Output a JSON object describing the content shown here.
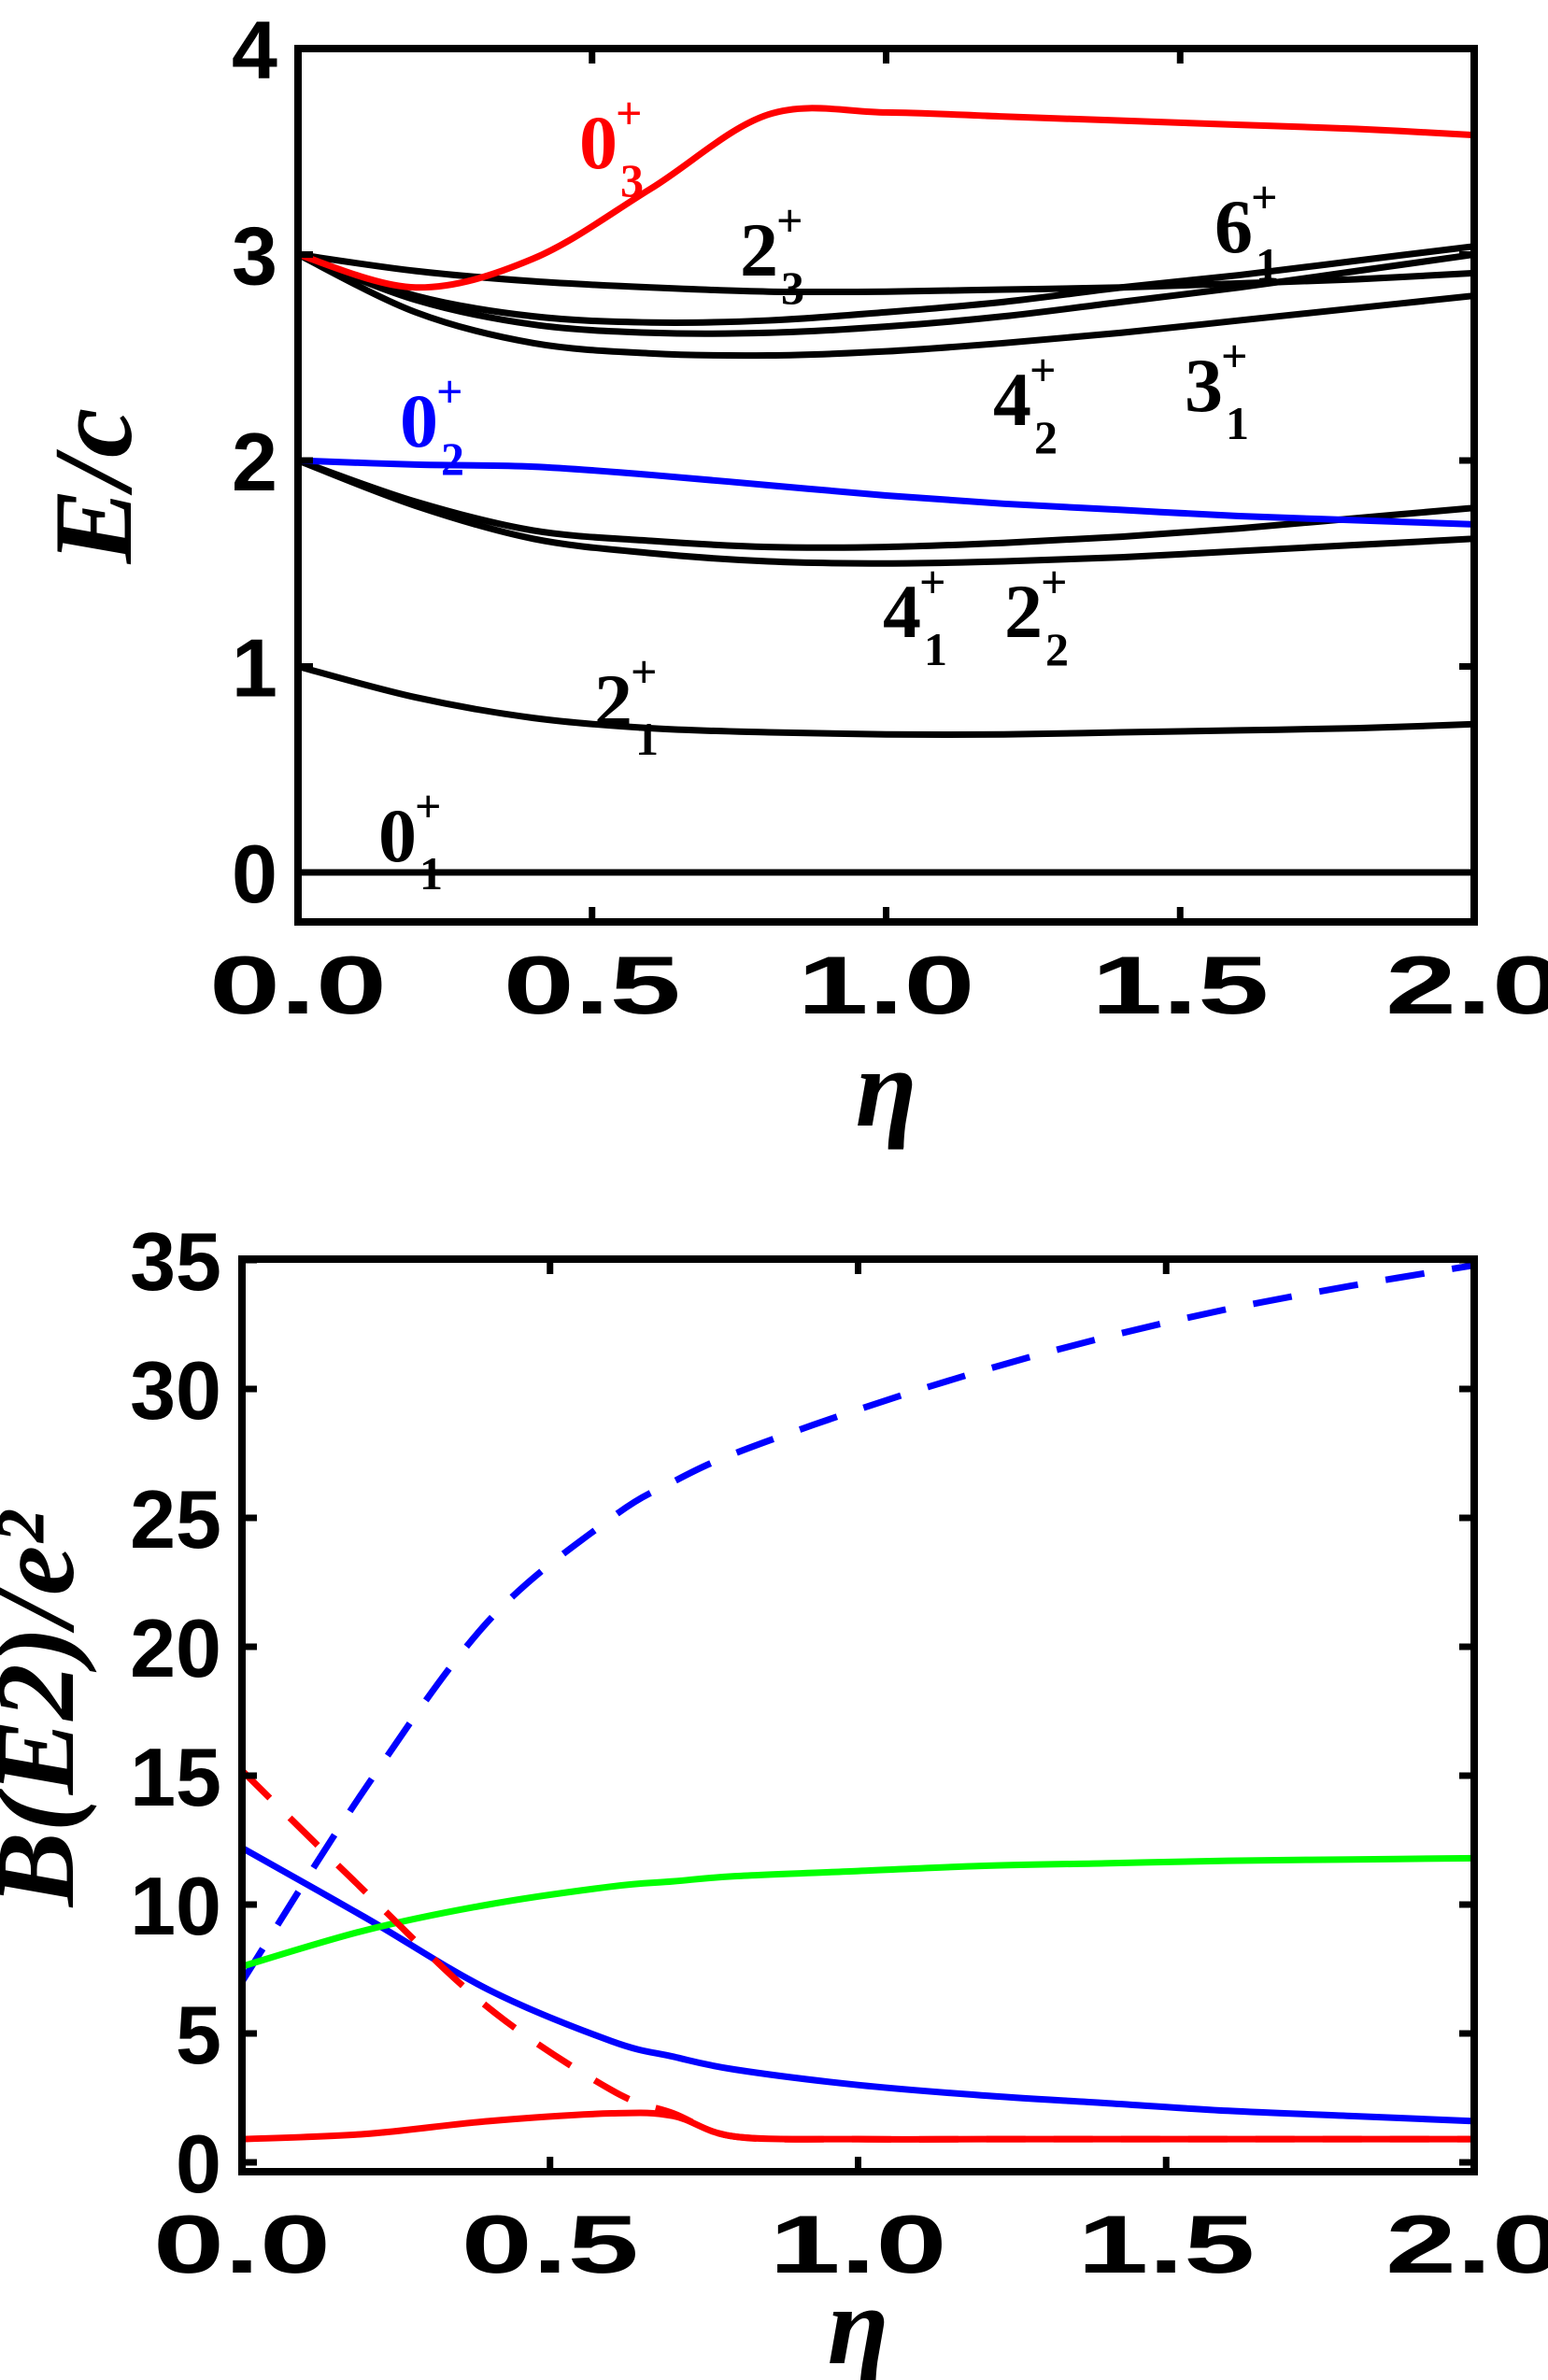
{
  "chart_data": [
    {
      "type": "line",
      "title": "",
      "xlabel": "η",
      "ylabel": "E/c",
      "xlim": [
        0,
        2
      ],
      "ylim": [
        -0.25,
        4
      ],
      "xticks": [
        "0.0",
        "0.5",
        "1.0",
        "1.5",
        "2.0"
      ],
      "yticks": [
        "0",
        "1",
        "2",
        "3",
        "4"
      ],
      "x": [
        0,
        0.2,
        0.4,
        0.6,
        0.8,
        1.0,
        1.2,
        1.4,
        1.6,
        1.8,
        2.0
      ],
      "series": [
        {
          "name": "0_1^+",
          "color": "#000000",
          "values": [
            0,
            0,
            0,
            0,
            0,
            0,
            0,
            0,
            0,
            0,
            0
          ]
        },
        {
          "name": "2_1^+",
          "color": "#000000",
          "values": [
            1.0,
            0.85,
            0.75,
            0.7,
            0.68,
            0.67,
            0.67,
            0.68,
            0.69,
            0.7,
            0.72
          ]
        },
        {
          "name": "4_1^+",
          "color": "#000000",
          "values": [
            2.0,
            1.8,
            1.66,
            1.61,
            1.58,
            1.58,
            1.6,
            1.63,
            1.67,
            1.72,
            1.77
          ]
        },
        {
          "name": "2_2^+",
          "color": "#000000",
          "values": [
            2.0,
            1.78,
            1.62,
            1.55,
            1.51,
            1.5,
            1.51,
            1.53,
            1.56,
            1.59,
            1.62
          ]
        },
        {
          "name": "0_2^+",
          "color": "#0000ff",
          "values": [
            2.0,
            1.98,
            1.97,
            1.93,
            1.88,
            1.83,
            1.79,
            1.76,
            1.73,
            1.71,
            1.69
          ]
        },
        {
          "name": "4_2^+",
          "color": "#000000",
          "values": [
            3.0,
            2.72,
            2.57,
            2.52,
            2.51,
            2.53,
            2.57,
            2.62,
            2.68,
            2.74,
            2.8
          ]
        },
        {
          "name": "3_1^+",
          "color": "#000000",
          "values": [
            3.0,
            2.78,
            2.66,
            2.62,
            2.62,
            2.65,
            2.7,
            2.77,
            2.84,
            2.92,
            3.0
          ]
        },
        {
          "name": "6_1^+",
          "color": "#000000",
          "values": [
            3.0,
            2.8,
            2.7,
            2.67,
            2.68,
            2.72,
            2.77,
            2.84,
            2.9,
            2.97,
            3.04
          ]
        },
        {
          "name": "2_3^+",
          "color": "#000000",
          "values": [
            3.0,
            2.92,
            2.87,
            2.84,
            2.82,
            2.82,
            2.83,
            2.84,
            2.86,
            2.88,
            2.91
          ]
        },
        {
          "name": "0_3^+",
          "color": "#ff0000",
          "values": [
            3.0,
            2.84,
            2.98,
            3.32,
            3.68,
            3.69,
            3.67,
            3.65,
            3.63,
            3.61,
            3.58
          ]
        }
      ],
      "annotations": [
        {
          "base": "0",
          "sub": "3",
          "sup": "+",
          "color": "#ff0000"
        },
        {
          "base": "2",
          "sub": "3",
          "sup": "+",
          "color": "#000000"
        },
        {
          "base": "6",
          "sub": "1",
          "sup": "+",
          "color": "#000000"
        },
        {
          "base": "0",
          "sub": "2",
          "sup": "+",
          "color": "#0000ff"
        },
        {
          "base": "4",
          "sub": "2",
          "sup": "+",
          "color": "#000000"
        },
        {
          "base": "3",
          "sub": "1",
          "sup": "+",
          "color": "#000000"
        },
        {
          "base": "4",
          "sub": "1",
          "sup": "+",
          "color": "#000000"
        },
        {
          "base": "2",
          "sub": "2",
          "sup": "+",
          "color": "#000000"
        },
        {
          "base": "2",
          "sub": "1",
          "sup": "+",
          "color": "#000000"
        },
        {
          "base": "0",
          "sub": "1",
          "sup": "+",
          "color": "#000000"
        }
      ]
    },
    {
      "type": "line",
      "title": "",
      "xlabel": "η",
      "ylabel": "B(E2)/e²",
      "xlim": [
        0,
        2
      ],
      "ylim": [
        -0.6,
        35
      ],
      "xticks": [
        "0.0",
        "0.5",
        "1.0",
        "1.5",
        "2.0"
      ],
      "yticks": [
        "0",
        "5",
        "10",
        "15",
        "20",
        "25",
        "30",
        "35"
      ],
      "x": [
        0,
        0.2,
        0.4,
        0.6,
        0.7,
        0.8,
        1.0,
        1.2,
        1.4,
        1.6,
        1.8,
        2.0
      ],
      "series": [
        {
          "name": "blue dashed",
          "color": "#0000ff",
          "dashed": true,
          "values": [
            7.0,
            14.5,
            21.0,
            25.0,
            26.4,
            27.5,
            29.2,
            30.7,
            32.0,
            33.1,
            34.0,
            34.8
          ]
        },
        {
          "name": "blue solid",
          "color": "#0000ff",
          "dashed": false,
          "values": [
            12.2,
            9.5,
            6.7,
            4.7,
            4.1,
            3.6,
            3.0,
            2.6,
            2.3,
            2.0,
            1.8,
            1.6
          ]
        },
        {
          "name": "green solid",
          "color": "#00ff00",
          "dashed": false,
          "values": [
            7.6,
            9.0,
            10.0,
            10.7,
            10.9,
            11.1,
            11.3,
            11.5,
            11.6,
            11.7,
            11.75,
            11.8
          ]
        },
        {
          "name": "red dashed",
          "color": "#ff0000",
          "dashed": true,
          "values": [
            15.2,
            10.5,
            6.0,
            2.8,
            1.9,
            1.0,
            0.9,
            0.9,
            0.9,
            0.9,
            0.9,
            0.9
          ]
        },
        {
          "name": "red solid",
          "color": "#ff0000",
          "dashed": false,
          "values": [
            0.9,
            1.1,
            1.6,
            1.9,
            1.8,
            1.0,
            0.9,
            0.9,
            0.9,
            0.9,
            0.9,
            0.9
          ]
        }
      ]
    }
  ]
}
